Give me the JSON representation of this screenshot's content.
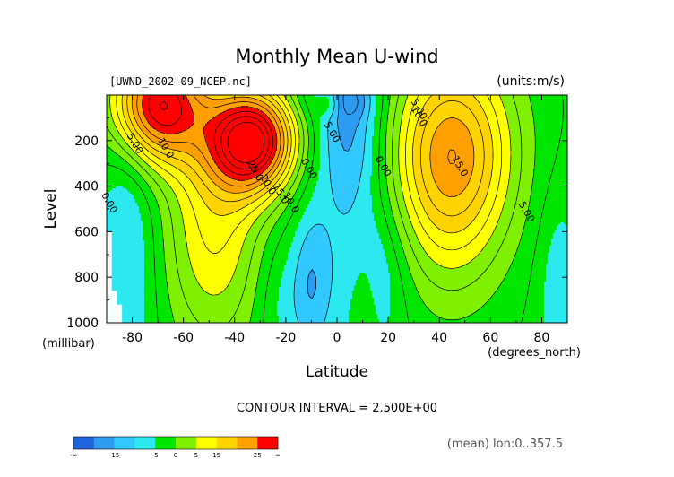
{
  "chart_data": {
    "type": "heatmap",
    "title": "Monthly Mean U-wind",
    "dataset_label": "[UWND_2002-09_NCEP.nc]",
    "units_label": "(units:m/s)",
    "xlabel": "Latitude",
    "x_units": "(degrees_north)",
    "ylabel": "Level",
    "y_units": "(millibar)",
    "xlim": [
      -90,
      90
    ],
    "ylim": [
      1000,
      0
    ],
    "x_ticks": [
      -80,
      -60,
      -40,
      -20,
      0,
      20,
      40,
      60,
      80
    ],
    "y_ticks": [
      200,
      400,
      600,
      800,
      1000
    ],
    "contour_interval_text": "CONTOUR INTERVAL = 2.500E+00",
    "footer_note": "(mean) lon:0..357.5",
    "contour_labels": [
      {
        "text": "5.00",
        "lat": -80,
        "lev": 220
      },
      {
        "text": "10.0",
        "lat": -68,
        "lev": 240
      },
      {
        "text": "0.00",
        "lat": -90,
        "lev": 480
      },
      {
        "text": "25.0",
        "lat": -33,
        "lev": 340
      },
      {
        "text": "20.0",
        "lat": -28,
        "lev": 400
      },
      {
        "text": "15.0",
        "lat": -23,
        "lev": 440
      },
      {
        "text": "10.0",
        "lat": -19,
        "lev": 480
      },
      {
        "text": "0.00",
        "lat": -12,
        "lev": 330
      },
      {
        "text": "5.00",
        "lat": -3,
        "lev": 170
      },
      {
        "text": "0.00",
        "lat": 17,
        "lev": 320
      },
      {
        "text": "5.00",
        "lat": 31,
        "lev": 70
      },
      {
        "text": "10.0",
        "lat": 31,
        "lev": 100
      },
      {
        "text": "15.0",
        "lat": 47,
        "lev": 320
      },
      {
        "text": "5.00",
        "lat": 73,
        "lev": 520
      }
    ],
    "colorbar": {
      "labels": [
        "-∞",
        "-15",
        "-5",
        "0",
        "5",
        "15",
        "25",
        "∞"
      ],
      "colors": [
        "#1e64dc",
        "#2d9bf0",
        "#31c8ff",
        "#2ce8ef",
        "#00e600",
        "#7ff000",
        "#ffff00",
        "#ffd400",
        "#ff9f00",
        "#ff0000"
      ]
    },
    "field_model": {
      "background_u": 2,
      "jets": [
        {
          "lat": -33,
          "lev": 200,
          "amp": 30,
          "sx": 12,
          "sy": 160
        },
        {
          "lat": -70,
          "lev": 40,
          "amp": 27,
          "sx": 13,
          "sy": 180
        },
        {
          "lat": -48,
          "lev": 560,
          "amp": 11,
          "sx": 14,
          "sy": 400
        },
        {
          "lat": 45,
          "lev": 210,
          "amp": 17,
          "sx": 17,
          "sy": 300
        },
        {
          "lat": 44,
          "lev": 560,
          "amp": 6,
          "sx": 16,
          "sy": 320
        },
        {
          "lat": 0,
          "lev": 20,
          "amp": -7,
          "sx": 8,
          "sy": 60
        },
        {
          "lat": 5,
          "lev": 150,
          "amp": -6,
          "sx": 9,
          "sy": 220
        },
        {
          "lat": 3,
          "lev": 500,
          "amp": -3,
          "sx": 14,
          "sy": 700
        },
        {
          "lat": -10,
          "lev": 830,
          "amp": -5,
          "sx": 5,
          "sy": 220
        },
        {
          "lat": 15,
          "lev": 760,
          "amp": -4,
          "sx": 9,
          "sy": 220
        },
        {
          "lat": 10,
          "lev": 920,
          "amp": 4,
          "sx": 4,
          "sy": 200
        },
        {
          "lat": -3,
          "lev": 30,
          "amp": 9,
          "sx": 4,
          "sy": 50
        },
        {
          "lat": -82,
          "lev": 650,
          "amp": -5,
          "sx": 8,
          "sy": 500
        },
        {
          "lat": 87,
          "lev": 850,
          "amp": -4,
          "sx": 6,
          "sy": 300
        },
        {
          "lat": -22,
          "lev": 900,
          "amp": -3,
          "sx": 7,
          "sy": 200
        }
      ],
      "missing_regions": [
        {
          "lat0": -90,
          "lat1": -88,
          "lev0": 600,
          "lev1": 1000
        },
        {
          "lat0": -88,
          "lat1": -86,
          "lev0": 860,
          "lev1": 1000
        },
        {
          "lat0": -86,
          "lat1": -84,
          "lev0": 920,
          "lev1": 1000
        }
      ]
    }
  }
}
